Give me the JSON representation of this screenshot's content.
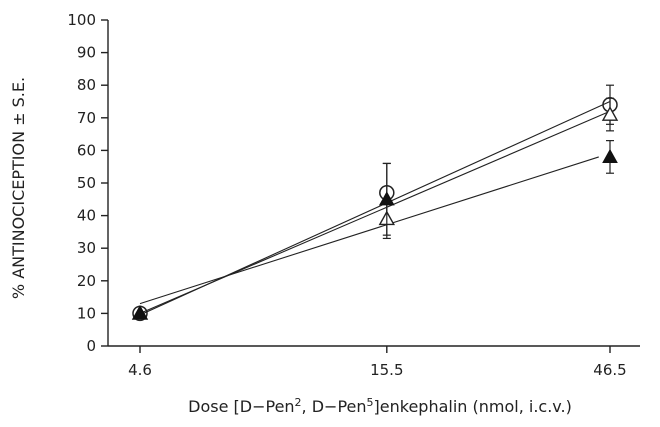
{
  "chart_data": {
    "type": "scatter",
    "title": "",
    "x_scale": "log",
    "x_ticks": [
      4.6,
      15.5,
      46.5
    ],
    "x_tick_labels": [
      "4.6",
      "15.5",
      "46.5"
    ],
    "xlabel_parts": {
      "pre": "Dose [D−Pen",
      "sup1": "2",
      "mid": ", D−Pen",
      "sup2": "5",
      "post": "]enkephalin (nmol, i.c.v.)"
    },
    "ylabel": "% ANTINOCICEPTION ± S.E.",
    "ylim": [
      0,
      100
    ],
    "y_ticks": [
      0,
      10,
      20,
      30,
      40,
      50,
      60,
      70,
      80,
      90,
      100
    ],
    "grid": false,
    "legend": "none",
    "series": [
      {
        "marker": "open-circle",
        "points": [
          {
            "x": 4.6,
            "y": 10,
            "err": 0
          },
          {
            "x": 15.5,
            "y": 47,
            "err": 9
          },
          {
            "x": 46.5,
            "y": 74,
            "err": 6
          }
        ],
        "fit": {
          "x1": 4.6,
          "y1": 9.5,
          "x2": 46.5,
          "y2": 75
        }
      },
      {
        "marker": "open-triangle",
        "points": [
          {
            "x": 4.6,
            "y": 10,
            "err": 0
          },
          {
            "x": 15.5,
            "y": 39,
            "err": 6
          },
          {
            "x": 46.5,
            "y": 71,
            "err": 5
          }
        ],
        "fit": {
          "x1": 4.6,
          "y1": 10,
          "x2": 46.5,
          "y2": 72
        }
      },
      {
        "marker": "filled-triangle",
        "points": [
          {
            "x": 4.6,
            "y": 10,
            "err": 0
          },
          {
            "x": 15.5,
            "y": 45,
            "err": 11
          },
          {
            "x": 46.5,
            "y": 58,
            "err": 5
          }
        ],
        "fit": {
          "x1": 4.6,
          "y1": 13,
          "x2": 44,
          "y2": 58
        }
      }
    ]
  }
}
